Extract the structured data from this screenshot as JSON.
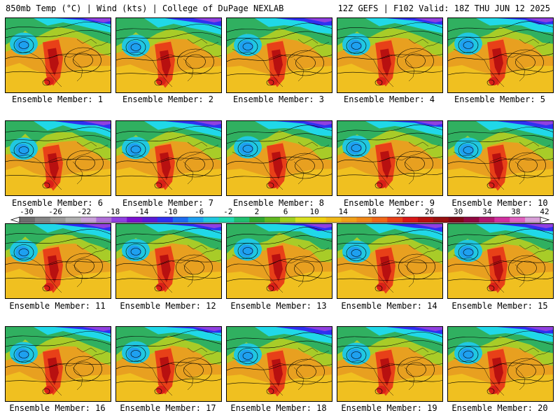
{
  "header": {
    "title_left": "850mb Temp (°C) | Wind (kts) | College of DuPage NEXLAB",
    "title_right": "12Z GEFS | F102 Valid: 18Z THU JUN 12 2025"
  },
  "panels": [
    {
      "label": "Ensemble Member: 1"
    },
    {
      "label": "Ensemble Member: 2"
    },
    {
      "label": "Ensemble Member: 3"
    },
    {
      "label": "Ensemble Member: 4"
    },
    {
      "label": "Ensemble Member: 5"
    },
    {
      "label": "Ensemble Member: 6"
    },
    {
      "label": "Ensemble Member: 7"
    },
    {
      "label": "Ensemble Member: 8"
    },
    {
      "label": "Ensemble Member: 9"
    },
    {
      "label": "Ensemble Member: 10"
    },
    {
      "label": "Ensemble Member: 11"
    },
    {
      "label": "Ensemble Member: 12"
    },
    {
      "label": "Ensemble Member: 13"
    },
    {
      "label": "Ensemble Member: 14"
    },
    {
      "label": "Ensemble Member: 15"
    },
    {
      "label": "Ensemble Member: 16"
    },
    {
      "label": "Ensemble Member: 17"
    },
    {
      "label": "Ensemble Member: 18"
    },
    {
      "label": "Ensemble Member: 19"
    },
    {
      "label": "Ensemble Member: 20"
    }
  ],
  "colorbar": {
    "labels": [
      "-30",
      "-26",
      "-22",
      "-18",
      "-14",
      "-10",
      "-6",
      "-2",
      "2",
      "6",
      "10",
      "14",
      "18",
      "22",
      "26",
      "30",
      "34",
      "38",
      "42"
    ],
    "colors": [
      "#6e6e6e",
      "#858585",
      "#9a9a9a",
      "#b0b0b0",
      "#c8a0d8",
      "#b070d8",
      "#9040e0",
      "#7a10d0",
      "#5a1ad8",
      "#3030f0",
      "#1e6cf0",
      "#1ea0f0",
      "#20c8e0",
      "#20d8b0",
      "#20c070",
      "#30a830",
      "#60b820",
      "#a0d020",
      "#d8e020",
      "#f0d010",
      "#f0b818",
      "#f0a018",
      "#f08818",
      "#f06818",
      "#e84018",
      "#d81818",
      "#b81010",
      "#981010",
      "#800818",
      "#900840",
      "#b01870",
      "#d030a0",
      "#e060c0",
      "#d8a0d8"
    ]
  }
}
